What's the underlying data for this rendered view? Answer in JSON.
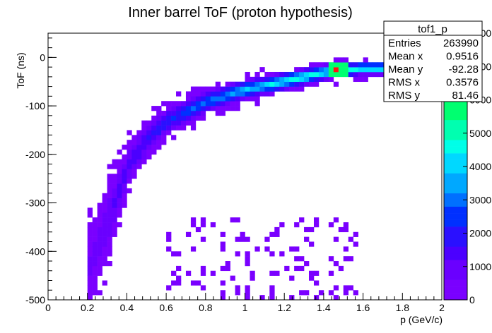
{
  "chart_data": {
    "type": "heatmap",
    "title": "Inner barrel ToF (proton hypothesis)",
    "xlabel": "p (GeV/c)",
    "ylabel": "ToF (ns)",
    "xlim": [
      0,
      2
    ],
    "ylim": [
      -500,
      50
    ],
    "zlim": [
      0,
      8000
    ],
    "x_ticks": [
      "0",
      "0.2",
      "0.4",
      "0.6",
      "0.8",
      "1",
      "1.2",
      "1.4",
      "1.6",
      "1.8",
      "2"
    ],
    "y_ticks": [
      "0",
      "-100",
      "-200",
      "-300",
      "-400",
      "-500"
    ],
    "z_ticks": [
      "0",
      "1000",
      "2000",
      "3000",
      "4000",
      "5000",
      "6000",
      "7000",
      "8000"
    ],
    "z_tick_values": [
      0,
      1000,
      2000,
      3000,
      4000,
      5000,
      6000,
      7000,
      8000
    ],
    "colors": {
      "palette": [
        "#7a00ff",
        "#6a00ff",
        "#4b00ff",
        "#2a10ff",
        "#0030ff",
        "#0070ff",
        "#00a8ff",
        "#00d8ff",
        "#00ffe8",
        "#00ffb0",
        "#00ff70",
        "#20ff30",
        "#60ff00",
        "#a8ff00",
        "#e0ff00"
      ],
      "hotspot": "#ff1010"
    },
    "band": {
      "description_points": [
        {
          "p": 0.2,
          "tof_center": -430,
          "width": 160
        },
        {
          "p": 0.3,
          "tof_center": -330,
          "width": 140
        },
        {
          "p": 0.4,
          "tof_center": -220,
          "width": 90
        },
        {
          "p": 0.5,
          "tof_center": -165,
          "width": 70
        },
        {
          "p": 0.6,
          "tof_center": -130,
          "width": 60
        },
        {
          "p": 0.8,
          "tof_center": -90,
          "width": 50
        },
        {
          "p": 1.0,
          "tof_center": -65,
          "width": 45
        },
        {
          "p": 1.2,
          "tof_center": -48,
          "width": 40
        },
        {
          "p": 1.4,
          "tof_center": -30,
          "width": 35
        },
        {
          "p": 1.6,
          "tof_center": -22,
          "width": 30
        }
      ],
      "peak": {
        "p": 1.45,
        "tof": -25
      }
    },
    "stats": {
      "name": "tof1_p",
      "rows": [
        {
          "label": "Entries",
          "value": "263990"
        },
        {
          "label": "Mean x",
          "value": "0.9516"
        },
        {
          "label": "Mean y",
          "value": "-92.28"
        },
        {
          "label": "RMS x",
          "value": "0.3576"
        },
        {
          "label": "RMS y",
          "value": "81.46"
        }
      ]
    }
  }
}
